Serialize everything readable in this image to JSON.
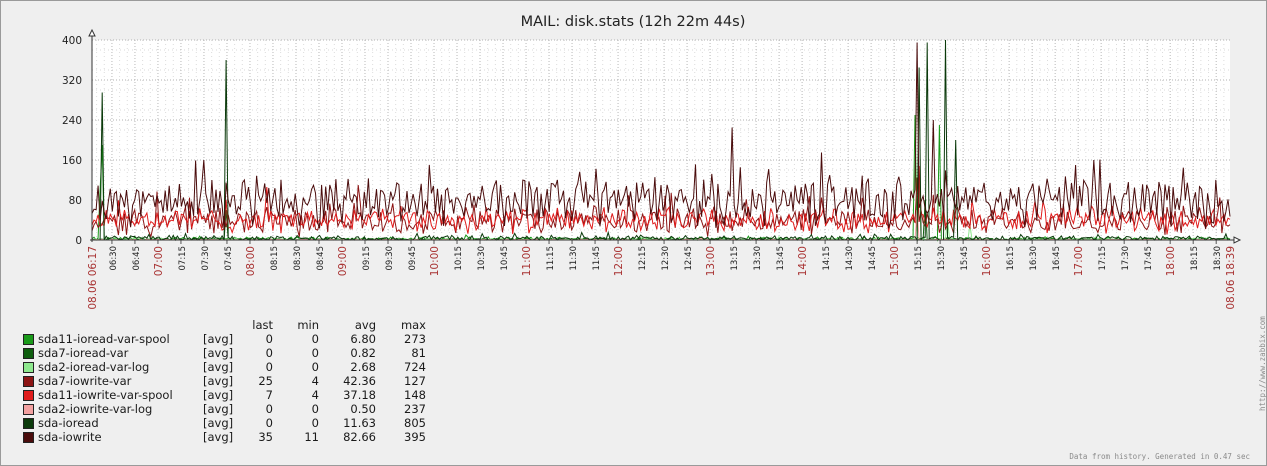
{
  "title": "MAIL: disk.stats  (12h 22m 44s)",
  "footer": "Data from history. Generated in 0.47 sec",
  "side_text": "http://www.zabbix.com",
  "legend_header": {
    "last": "last",
    "min": "min",
    "avg": "avg",
    "max": "max"
  },
  "legend": [
    {
      "name": "sda11-ioread-var-spool",
      "func": "[avg]",
      "last": "0",
      "min": "0",
      "avg": "6.80",
      "max": "273",
      "color": "#1a9a1a"
    },
    {
      "name": "sda7-ioread-var",
      "func": "[avg]",
      "last": "0",
      "min": "0",
      "avg": "0.82",
      "max": "81",
      "color": "#0e5e0e"
    },
    {
      "name": "sda2-ioread-var-log",
      "func": "[avg]",
      "last": "0",
      "min": "0",
      "avg": "2.68",
      "max": "724",
      "color": "#8ee88e"
    },
    {
      "name": "sda7-iowrite-var",
      "func": "[avg]",
      "last": "25",
      "min": "4",
      "avg": "42.36",
      "max": "127",
      "color": "#8c1414"
    },
    {
      "name": "sda11-iowrite-var-spool",
      "func": "[avg]",
      "last": "7",
      "min": "4",
      "avg": "37.18",
      "max": "148",
      "color": "#e01c1c"
    },
    {
      "name": "sda2-iowrite-var-log",
      "func": "[avg]",
      "last": "0",
      "min": "0",
      "avg": "0.50",
      "max": "237",
      "color": "#f2a0a0"
    },
    {
      "name": "sda-ioread",
      "func": "[avg]",
      "last": "0",
      "min": "0",
      "avg": "11.63",
      "max": "805",
      "color": "#0b3a0b"
    },
    {
      "name": "sda-iowrite",
      "func": "[avg]",
      "last": "35",
      "min": "11",
      "avg": "82.66",
      "max": "395",
      "color": "#4a0c0c"
    }
  ],
  "chart_data": {
    "type": "line",
    "title": "MAIL: disk.stats  (12h 22m 44s)",
    "ylim": [
      0,
      400
    ],
    "yticks": [
      0,
      80,
      160,
      240,
      320,
      400
    ],
    "grid": true,
    "x_start": "08.06 06:17",
    "x_end": "08.06 18:39",
    "x_tick_labels": [
      "06:30",
      "06:45",
      "07:00",
      "07:15",
      "07:30",
      "07:45",
      "08:00",
      "08:15",
      "08:30",
      "08:45",
      "09:00",
      "09:15",
      "09:30",
      "09:45",
      "10:00",
      "10:15",
      "10:30",
      "10:45",
      "11:00",
      "11:15",
      "11:30",
      "11:45",
      "12:00",
      "12:15",
      "12:30",
      "12:45",
      "13:00",
      "13:15",
      "13:30",
      "13:45",
      "14:00",
      "14:15",
      "14:30",
      "14:45",
      "15:00",
      "15:15",
      "15:30",
      "15:45",
      "16:00",
      "16:15",
      "16:30",
      "16:45",
      "17:00",
      "17:15",
      "17:30",
      "17:45",
      "18:00",
      "18:15",
      "18:30"
    ],
    "hour_tick_labels": [
      "07:00",
      "08:00",
      "09:00",
      "10:00",
      "11:00",
      "12:00",
      "13:00",
      "14:00",
      "15:00",
      "16:00",
      "17:00",
      "18:00"
    ],
    "series": [
      {
        "name": "sda11-ioread-var-spool",
        "color": "#1a9a1a",
        "baseline": 2,
        "noise": 3,
        "spikes": [
          [
            "06:22",
            100
          ],
          [
            "06:23",
            190
          ],
          [
            "15:14",
            250
          ],
          [
            "15:30",
            230
          ]
        ]
      },
      {
        "name": "sda7-ioread-var",
        "color": "#0e5e0e",
        "baseline": 1,
        "noise": 2,
        "spikes": [
          [
            "07:45",
            60
          ],
          [
            "15:20",
            80
          ]
        ]
      },
      {
        "name": "sda2-ioread-var-log",
        "color": "#8ee88e",
        "baseline": 1,
        "noise": 2,
        "spikes": [
          [
            "15:16",
            120
          ],
          [
            "15:35",
            40
          ],
          [
            "15:50",
            30
          ]
        ]
      },
      {
        "name": "sda7-iowrite-var",
        "color": "#8c1414",
        "baseline": 38,
        "noise": 22,
        "spikes": [
          [
            "09:10",
            110
          ],
          [
            "15:15",
            125
          ]
        ]
      },
      {
        "name": "sda11-iowrite-var-spool",
        "color": "#e01c1c",
        "baseline": 40,
        "noise": 20,
        "spikes": [
          [
            "07:44",
            80
          ],
          [
            "15:16",
            148
          ]
        ]
      },
      {
        "name": "sda2-iowrite-var-log",
        "color": "#f2a0a0",
        "baseline": 0.5,
        "noise": 1,
        "spikes": [
          [
            "15:15",
            60
          ]
        ]
      },
      {
        "name": "sda-ioread",
        "color": "#0b3a0b",
        "baseline": 3,
        "noise": 5,
        "spikes": [
          [
            "06:23",
            295
          ],
          [
            "07:45",
            360
          ],
          [
            "15:16",
            345
          ],
          [
            "15:22",
            395
          ],
          [
            "15:33",
            400
          ],
          [
            "15:40",
            200
          ]
        ]
      },
      {
        "name": "sda-iowrite",
        "color": "#4a0c0c",
        "baseline": 78,
        "noise": 40,
        "spikes": [
          [
            "13:15",
            225
          ],
          [
            "14:13",
            175
          ],
          [
            "15:15",
            395
          ],
          [
            "15:25",
            240
          ],
          [
            "16:58",
            150
          ],
          [
            "17:10",
            160
          ]
        ]
      }
    ]
  }
}
